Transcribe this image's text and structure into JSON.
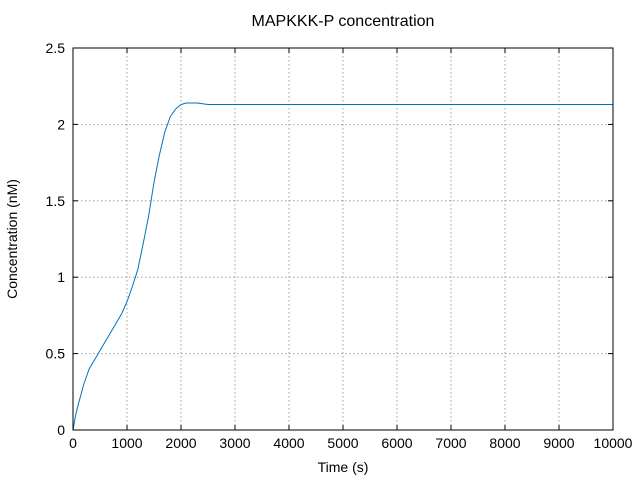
{
  "chart_data": {
    "type": "line",
    "title": "MAPKKK-P concentration",
    "xlabel": "Time (s)",
    "ylabel": "Concentration (nM)",
    "xlim": [
      0,
      10000
    ],
    "ylim": [
      0,
      2.5
    ],
    "xticks": [
      0,
      1000,
      2000,
      3000,
      4000,
      5000,
      6000,
      7000,
      8000,
      9000,
      10000
    ],
    "yticks": [
      0,
      0.5,
      1,
      1.5,
      2,
      2.5
    ],
    "xtick_labels": [
      "0",
      "1000",
      "2000",
      "3000",
      "4000",
      "5000",
      "6000",
      "7000",
      "8000",
      "9000",
      "10000"
    ],
    "ytick_labels": [
      "0",
      "0.5",
      "1",
      "1.5",
      "2",
      "2.5"
    ],
    "grid": true,
    "line_color": "#0072bd",
    "series": [
      {
        "x": [
          0,
          50,
          100,
          200,
          300,
          400,
          500,
          600,
          700,
          800,
          900,
          1000,
          1100,
          1200,
          1300,
          1400,
          1500,
          1600,
          1700,
          1800,
          1900,
          2000,
          2100,
          2200,
          2300,
          2400,
          2500,
          2700,
          3000,
          4000,
          5000,
          6000,
          7000,
          8000,
          9000,
          10000
        ],
        "y": [
          0,
          0.1,
          0.17,
          0.3,
          0.4,
          0.46,
          0.52,
          0.58,
          0.64,
          0.7,
          0.76,
          0.84,
          0.94,
          1.05,
          1.22,
          1.4,
          1.62,
          1.8,
          1.95,
          2.05,
          2.1,
          2.13,
          2.14,
          2.14,
          2.14,
          2.135,
          2.13,
          2.13,
          2.13,
          2.13,
          2.13,
          2.13,
          2.13,
          2.13,
          2.13,
          2.13
        ]
      }
    ]
  }
}
